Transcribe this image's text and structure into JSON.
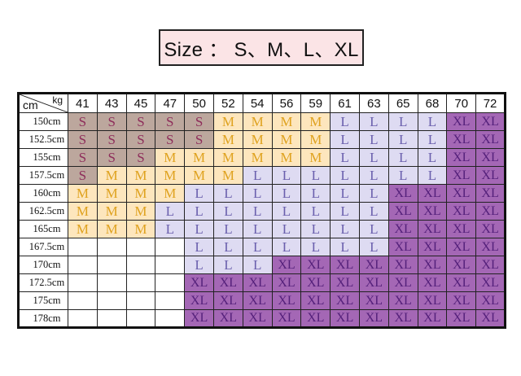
{
  "title": "Size ： S、M、L、XL",
  "table": {
    "corner_top": "kg",
    "corner_bottom": "cm",
    "weights": [
      "41",
      "43",
      "45",
      "47",
      "50",
      "52",
      "54",
      "56",
      "59",
      "61",
      "63",
      "65",
      "68",
      "70",
      "72"
    ],
    "rows": [
      {
        "height": "150cm",
        "sizes": [
          "S",
          "S",
          "S",
          "S",
          "S",
          "M",
          "M",
          "M",
          "M",
          "L",
          "L",
          "L",
          "L",
          "XL",
          "XL"
        ]
      },
      {
        "height": "152.5cm",
        "sizes": [
          "S",
          "S",
          "S",
          "S",
          "S",
          "M",
          "M",
          "M",
          "M",
          "L",
          "L",
          "L",
          "L",
          "XL",
          "XL"
        ]
      },
      {
        "height": "155cm",
        "sizes": [
          "S",
          "S",
          "S",
          "M",
          "M",
          "M",
          "M",
          "M",
          "M",
          "L",
          "L",
          "L",
          "L",
          "XL",
          "XL"
        ]
      },
      {
        "height": "157.5cm",
        "sizes": [
          "S",
          "M",
          "M",
          "M",
          "M",
          "M",
          "L",
          "L",
          "L",
          "L",
          "L",
          "L",
          "L",
          "XL",
          "XL"
        ]
      },
      {
        "height": "160cm",
        "sizes": [
          "M",
          "M",
          "M",
          "M",
          "L",
          "L",
          "L",
          "L",
          "L",
          "L",
          "L",
          "XL",
          "XL",
          "XL",
          "XL"
        ]
      },
      {
        "height": "162.5cm",
        "sizes": [
          "M",
          "M",
          "M",
          "L",
          "L",
          "L",
          "L",
          "L",
          "L",
          "L",
          "L",
          "XL",
          "XL",
          "XL",
          "XL"
        ]
      },
      {
        "height": "165cm",
        "sizes": [
          "M",
          "M",
          "M",
          "L",
          "L",
          "L",
          "L",
          "L",
          "L",
          "L",
          "L",
          "XL",
          "XL",
          "XL",
          "XL"
        ]
      },
      {
        "height": "167.5cm",
        "sizes": [
          "",
          "",
          "",
          "",
          "L",
          "L",
          "L",
          "L",
          "L",
          "L",
          "L",
          "XL",
          "XL",
          "XL",
          "XL"
        ]
      },
      {
        "height": "170cm",
        "sizes": [
          "",
          "",
          "",
          "",
          "L",
          "L",
          "L",
          "XL",
          "XL",
          "XL",
          "XL",
          "XL",
          "XL",
          "XL",
          "XL"
        ]
      },
      {
        "height": "172.5cm",
        "sizes": [
          "",
          "",
          "",
          "",
          "XL",
          "XL",
          "XL",
          "XL",
          "XL",
          "XL",
          "XL",
          "XL",
          "XL",
          "XL",
          "XL"
        ]
      },
      {
        "height": "175cm",
        "sizes": [
          "",
          "",
          "",
          "",
          "XL",
          "XL",
          "XL",
          "XL",
          "XL",
          "XL",
          "XL",
          "XL",
          "XL",
          "XL",
          "XL"
        ]
      },
      {
        "height": "178cm",
        "sizes": [
          "",
          "",
          "",
          "",
          "XL",
          "XL",
          "XL",
          "XL",
          "XL",
          "XL",
          "XL",
          "XL",
          "XL",
          "XL",
          "XL"
        ]
      }
    ]
  },
  "colors": {
    "S_bg": "#bca79d",
    "S_text": "#8e2d5a",
    "M_bg": "#fde6bd",
    "M_text": "#dfa21f",
    "L_bg": "#dedbf2",
    "L_text": "#6a5fad",
    "XL_bg": "#a467b5",
    "XL_text": "#55217b",
    "title_bg": "#fbe4e6"
  }
}
